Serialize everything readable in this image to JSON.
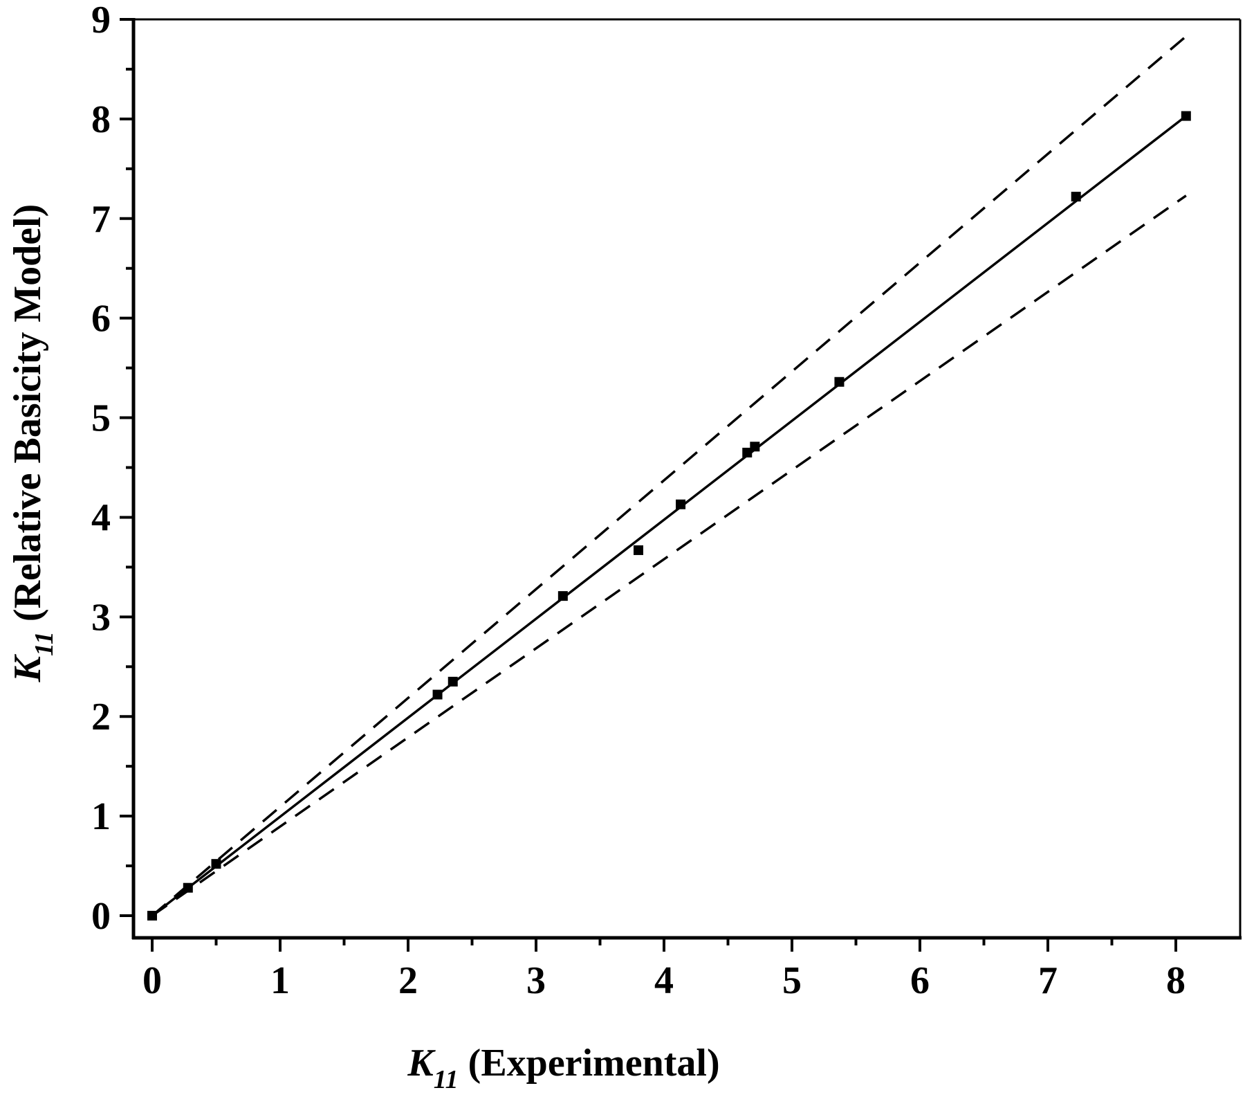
{
  "chart_data": {
    "type": "scatter",
    "xlabel": {
      "symbol": "K",
      "subscript": "11",
      "text": "(Experimental)"
    },
    "ylabel": {
      "symbol": "K",
      "subscript": "11",
      "text": "(Relative Basicity Model)"
    },
    "xlim": [
      -0.15,
      8.5
    ],
    "ylim": [
      -0.25,
      9
    ],
    "x_ticks": [
      "0",
      "1",
      "2",
      "3",
      "4",
      "5",
      "6",
      "7",
      "8"
    ],
    "y_ticks": [
      "0",
      "1",
      "2",
      "3",
      "4",
      "5",
      "6",
      "7",
      "8",
      "9"
    ],
    "points": [
      {
        "x": 0,
        "y": 0
      },
      {
        "x": 0.28,
        "y": 0.28
      },
      {
        "x": 0.5,
        "y": 0.52
      },
      {
        "x": 2.23,
        "y": 2.22
      },
      {
        "x": 2.35,
        "y": 2.35
      },
      {
        "x": 3.21,
        "y": 3.21
      },
      {
        "x": 3.8,
        "y": 3.67
      },
      {
        "x": 4.13,
        "y": 4.13
      },
      {
        "x": 4.65,
        "y": 4.65
      },
      {
        "x": 4.71,
        "y": 4.71
      },
      {
        "x": 5.37,
        "y": 5.36
      },
      {
        "x": 7.22,
        "y": 7.22
      },
      {
        "x": 8.08,
        "y": 8.03
      }
    ],
    "fit_line": {
      "x": [
        0,
        8.08
      ],
      "y": [
        0,
        8.03
      ],
      "style": "solid"
    },
    "bounds": [
      {
        "x": [
          0,
          8.08
        ],
        "y": [
          0,
          8.83
        ],
        "style": "dashed"
      },
      {
        "x": [
          0,
          8.08
        ],
        "y": [
          0,
          7.23
        ],
        "style": "dashed"
      }
    ],
    "grid": false,
    "legend": "none",
    "colors": {
      "axes": "#000000",
      "markers": "#000000",
      "background": "#ffffff"
    }
  }
}
